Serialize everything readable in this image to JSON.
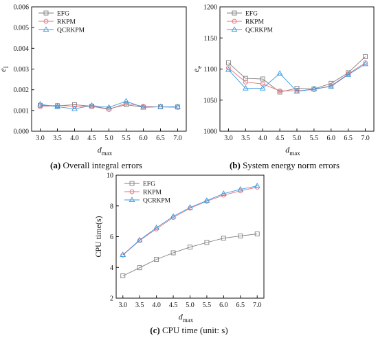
{
  "colors": {
    "EFG": "#7f7f7f",
    "RKPM": "#e8707a",
    "QCRKPM": "#3a9be0"
  },
  "markers": {
    "EFG": "square",
    "RKPM": "circle",
    "QCRKPM": "triangle"
  },
  "captions": [
    {
      "label": "(a)",
      "text": " Overall integral errors"
    },
    {
      "label": "(b)",
      "text": " System energy norm errors"
    },
    {
      "label": "(c)",
      "text": " CPU time (unit: s)"
    }
  ],
  "chart_data": [
    {
      "id": "a",
      "type": "line",
      "xlabel_main": "d",
      "xlabel_sub": "max",
      "ylabel_main": "e",
      "ylabel_sub": "I",
      "x": [
        3.0,
        3.5,
        4.0,
        4.5,
        5.0,
        5.5,
        6.0,
        6.5,
        7.0
      ],
      "xticks": [
        "3.0",
        "3.5",
        "4.0",
        "4.5",
        "5.0",
        "5.5",
        "6.0",
        "6.5",
        "7.0"
      ],
      "xlim": [
        2.75,
        7.25
      ],
      "ylim": [
        0,
        0.006
      ],
      "yticks": [
        "0.000",
        "0.001",
        "0.002",
        "0.003",
        "0.004",
        "0.005",
        "0.006"
      ],
      "legend": "top-left",
      "series": [
        {
          "name": "EFG",
          "values": [
            0.00125,
            0.00123,
            0.00128,
            0.00121,
            0.00108,
            0.00128,
            0.00116,
            0.00118,
            0.00117
          ]
        },
        {
          "name": "RKPM",
          "values": [
            0.00118,
            0.00125,
            0.0012,
            0.0012,
            0.00105,
            0.00135,
            0.0012,
            0.00117,
            0.00115
          ]
        },
        {
          "name": "QCRKPM",
          "values": [
            0.0013,
            0.00118,
            0.00108,
            0.00124,
            0.00115,
            0.00145,
            0.00115,
            0.00118,
            0.00118
          ]
        }
      ]
    },
    {
      "id": "b",
      "type": "line",
      "xlabel_main": "d",
      "xlabel_sub": "max",
      "ylabel_main": "e",
      "ylabel_sub": "e",
      "x": [
        3.0,
        3.5,
        4.0,
        4.5,
        5.0,
        5.5,
        6.0,
        6.5,
        7.0
      ],
      "xticks": [
        "3.0",
        "3.5",
        "4.0",
        "4.5",
        "5.0",
        "5.5",
        "6.0",
        "6.5",
        "7.0"
      ],
      "xlim": [
        2.75,
        7.25
      ],
      "ylim": [
        1000,
        1200
      ],
      "yticks": [
        "1000",
        "1050",
        "1100",
        "1150",
        "1200"
      ],
      "legend": "top-left",
      "series": [
        {
          "name": "EFG",
          "values": [
            1110,
            1085,
            1084,
            1063,
            1069,
            1068,
            1077,
            1094,
            1120
          ]
        },
        {
          "name": "RKPM",
          "values": [
            1102,
            1079,
            1076,
            1065,
            1065,
            1067,
            1073,
            1092,
            1110
          ]
        },
        {
          "name": "QCRKPM",
          "values": [
            1099,
            1069,
            1069,
            1093,
            1064,
            1068,
            1072,
            1091,
            1108
          ]
        }
      ]
    },
    {
      "id": "c",
      "type": "line",
      "xlabel_main": "d",
      "xlabel_sub": "max",
      "ylabel_main": "CPU time(s)",
      "ylabel_sub": "",
      "x": [
        3.0,
        3.5,
        4.0,
        4.5,
        5.0,
        5.5,
        6.0,
        6.5,
        7.0
      ],
      "xticks": [
        "3.0",
        "3.5",
        "4.0",
        "4.5",
        "5.0",
        "5.5",
        "6.0",
        "6.5",
        "7.0"
      ],
      "xlim": [
        2.8,
        7.2
      ],
      "ylim": [
        2,
        10
      ],
      "yticks": [
        "2",
        "4",
        "6",
        "8",
        "10"
      ],
      "legend": "top-left",
      "series": [
        {
          "name": "EFG",
          "values": [
            3.45,
            3.98,
            4.52,
            4.95,
            5.32,
            5.62,
            5.9,
            6.05,
            6.18
          ]
        },
        {
          "name": "RKPM",
          "values": [
            4.8,
            5.75,
            6.5,
            7.25,
            7.85,
            8.3,
            8.7,
            8.98,
            9.22
          ]
        },
        {
          "name": "QCRKPM",
          "values": [
            4.82,
            5.78,
            6.58,
            7.32,
            7.9,
            8.35,
            8.8,
            9.08,
            9.3
          ]
        }
      ]
    }
  ]
}
